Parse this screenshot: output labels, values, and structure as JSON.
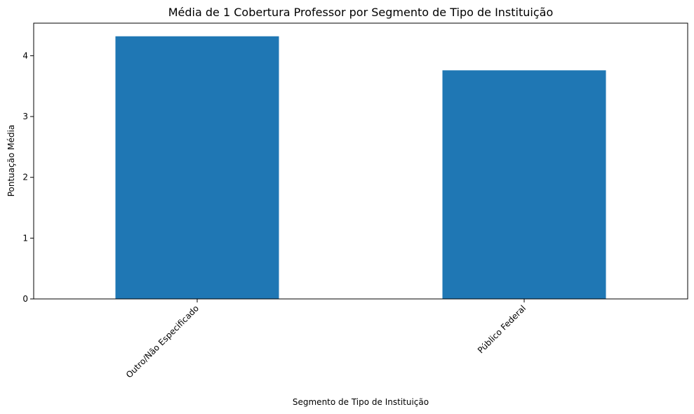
{
  "chart_data": {
    "type": "bar",
    "title": "Média de 1 Cobertura Professor por Segmento de Tipo de Instituição",
    "xlabel": "Segmento de Tipo de Instituição",
    "ylabel": "Pontuação Média",
    "categories": [
      "Outro/Não Especificado",
      "Público Federal"
    ],
    "values": [
      4.32,
      3.76
    ],
    "ylim": [
      0,
      4.536
    ],
    "yticks": [
      0,
      1,
      2,
      3,
      4
    ],
    "grid": false,
    "legend": "none",
    "bar_color": "#1f77b4"
  }
}
